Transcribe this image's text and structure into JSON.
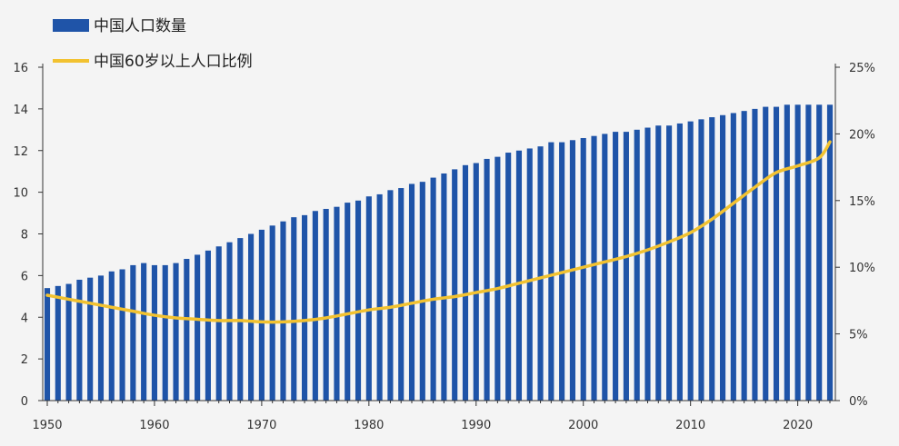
{
  "chart_data": {
    "type": "bar",
    "title": "",
    "xlabel": "",
    "ylabel": "",
    "legend_position": "top-left",
    "grid": false,
    "x_ticks": [
      1950,
      1960,
      1970,
      1980,
      1990,
      2000,
      2010,
      2020
    ],
    "xlim": [
      1950,
      2023
    ],
    "left_axis": {
      "ylim": [
        0,
        16
      ],
      "ticks": [
        "0",
        "2",
        "4",
        "6",
        "8",
        "10",
        "12",
        "14",
        "16"
      ]
    },
    "right_axis": {
      "ylim": [
        0,
        25
      ],
      "ticks": [
        "0%",
        "5%",
        "10%",
        "15%",
        "20%",
        "25%"
      ]
    },
    "colors": {
      "bar": "#1f54a8",
      "line": "#f2c230",
      "axis": "#333333"
    },
    "series": [
      {
        "name": "中国人口数量",
        "type": "bar",
        "axis": "left",
        "x": [
          1950,
          1951,
          1952,
          1953,
          1954,
          1955,
          1956,
          1957,
          1958,
          1959,
          1960,
          1961,
          1962,
          1963,
          1964,
          1965,
          1966,
          1967,
          1968,
          1969,
          1970,
          1971,
          1972,
          1973,
          1974,
          1975,
          1976,
          1977,
          1978,
          1979,
          1980,
          1981,
          1982,
          1983,
          1984,
          1985,
          1986,
          1987,
          1988,
          1989,
          1990,
          1991,
          1992,
          1993,
          1994,
          1995,
          1996,
          1997,
          1998,
          1999,
          2000,
          2001,
          2002,
          2003,
          2004,
          2005,
          2006,
          2007,
          2008,
          2009,
          2010,
          2011,
          2012,
          2013,
          2014,
          2015,
          2016,
          2017,
          2018,
          2019,
          2020,
          2021,
          2022,
          2023
        ],
        "values": [
          5.4,
          5.5,
          5.6,
          5.8,
          5.9,
          6.0,
          6.2,
          6.3,
          6.5,
          6.6,
          6.5,
          6.5,
          6.6,
          6.8,
          7.0,
          7.2,
          7.4,
          7.6,
          7.8,
          8.0,
          8.2,
          8.4,
          8.6,
          8.8,
          8.9,
          9.1,
          9.2,
          9.3,
          9.5,
          9.6,
          9.8,
          9.9,
          10.1,
          10.2,
          10.4,
          10.5,
          10.7,
          10.9,
          11.1,
          11.3,
          11.4,
          11.6,
          11.7,
          11.9,
          12.0,
          12.1,
          12.2,
          12.4,
          12.4,
          12.5,
          12.6,
          12.7,
          12.8,
          12.9,
          12.9,
          13.0,
          13.1,
          13.2,
          13.2,
          13.3,
          13.4,
          13.5,
          13.6,
          13.7,
          13.8,
          13.9,
          14.0,
          14.1,
          14.1,
          14.2,
          14.2,
          14.2,
          14.2,
          14.2
        ]
      },
      {
        "name": "中国60岁以上人口比例",
        "type": "line",
        "axis": "right",
        "x": [
          1950,
          1952,
          1954,
          1956,
          1958,
          1960,
          1962,
          1964,
          1966,
          1968,
          1970,
          1972,
          1974,
          1976,
          1978,
          1980,
          1982,
          1984,
          1986,
          1988,
          1990,
          1992,
          1994,
          1996,
          1998,
          2000,
          2002,
          2004,
          2006,
          2008,
          2010,
          2012,
          2014,
          2016,
          2018,
          2020,
          2022,
          2023
        ],
        "values": [
          7.9,
          7.6,
          7.3,
          7.0,
          6.7,
          6.4,
          6.2,
          6.1,
          6.0,
          6.0,
          5.9,
          5.9,
          6.0,
          6.2,
          6.5,
          6.8,
          7.0,
          7.3,
          7.6,
          7.8,
          8.1,
          8.4,
          8.8,
          9.2,
          9.6,
          10.0,
          10.4,
          10.8,
          11.3,
          11.9,
          12.6,
          13.6,
          14.8,
          16.0,
          17.1,
          17.6,
          18.2,
          19.4
        ]
      }
    ]
  }
}
